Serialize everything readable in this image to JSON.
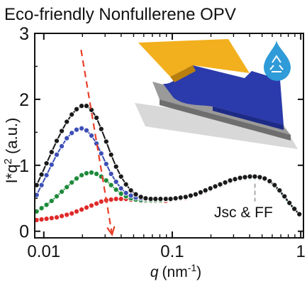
{
  "title": "Eco-friendly Nonfullerene OPV",
  "chart_data": {
    "type": "scatter",
    "title": "Eco-friendly Nonfullerene OPV",
    "xlabel_italic": "q",
    "xlabel_unit": "(nm",
    "xlabel_exp": "-1",
    "xlabel_close": ")",
    "ylabel_base": "I*q",
    "ylabel_exp": "2",
    "ylabel_unit": " (a.u.)",
    "xscale": "log",
    "xlim": [
      0.0085,
      1.05
    ],
    "ylim": [
      -0.1,
      3.0
    ],
    "xticks": [
      {
        "v": 0.01,
        "label": "0.01"
      },
      {
        "v": 0.1,
        "label": "0.1"
      },
      {
        "v": 1,
        "label": "1"
      }
    ],
    "yticks": [
      {
        "v": 0,
        "label": "0"
      },
      {
        "v": 1,
        "label": "1"
      },
      {
        "v": 2,
        "label": "2"
      },
      {
        "v": 3,
        "label": "3"
      }
    ],
    "annotation": "Jsc & FF",
    "colors": {
      "black": "#1a1a1a",
      "blue": "#3d4fb5",
      "green": "#1e8a3a",
      "red": "#e02a2a",
      "arrow": "#e8402a",
      "dashed_line": "#aaaaaa"
    },
    "series": [
      {
        "color": "black",
        "x": [
          0.0088,
          0.0096,
          0.0105,
          0.0115,
          0.0126,
          0.0138,
          0.0151,
          0.0165,
          0.018,
          0.0197,
          0.0215,
          0.0235,
          0.0257,
          0.028,
          0.0306,
          0.0334,
          0.0365,
          0.0399,
          0.0436,
          0.0476,
          0.052,
          0.057,
          0.062,
          0.068,
          0.074,
          0.081,
          0.089,
          0.097,
          0.106,
          0.116,
          0.127,
          0.139,
          0.152,
          0.166,
          0.181,
          0.198,
          0.216,
          0.236,
          0.258,
          0.282,
          0.308,
          0.337,
          0.368,
          0.402,
          0.439,
          0.48,
          0.524,
          0.573,
          0.626,
          0.684,
          0.747,
          0.816,
          0.892,
          0.975
        ],
        "y": [
          0.7,
          0.86,
          1.03,
          1.2,
          1.37,
          1.52,
          1.66,
          1.77,
          1.85,
          1.9,
          1.9,
          1.84,
          1.72,
          1.55,
          1.36,
          1.16,
          0.98,
          0.83,
          0.71,
          0.62,
          0.56,
          0.52,
          0.5,
          0.49,
          0.49,
          0.49,
          0.49,
          0.49,
          0.5,
          0.51,
          0.52,
          0.54,
          0.56,
          0.59,
          0.62,
          0.65,
          0.68,
          0.71,
          0.74,
          0.77,
          0.79,
          0.81,
          0.82,
          0.83,
          0.83,
          0.82,
          0.8,
          0.76,
          0.7,
          0.62,
          0.53,
          0.43,
          0.34,
          0.26
        ]
      },
      {
        "color": "blue",
        "x": [
          0.0088,
          0.0096,
          0.0105,
          0.0115,
          0.0126,
          0.0138,
          0.0151,
          0.0165,
          0.018,
          0.0197,
          0.0215,
          0.0235,
          0.0257,
          0.028,
          0.0306,
          0.0334,
          0.0365,
          0.0399,
          0.0436,
          0.0476,
          0.052,
          0.057,
          0.062,
          0.068,
          0.074,
          0.081,
          0.089,
          0.097,
          0.106,
          0.116,
          0.127,
          0.139,
          0.152,
          0.166,
          0.181,
          0.198,
          0.216,
          0.236,
          0.258,
          0.282,
          0.308,
          0.337,
          0.368,
          0.402,
          0.439,
          0.48,
          0.524,
          0.573,
          0.626,
          0.684,
          0.747,
          0.816,
          0.892,
          0.975
        ],
        "y": [
          0.55,
          0.7,
          0.85,
          1.01,
          1.16,
          1.29,
          1.41,
          1.49,
          1.54,
          1.56,
          1.53,
          1.45,
          1.33,
          1.18,
          1.02,
          0.87,
          0.75,
          0.65,
          0.58,
          0.54,
          0.51,
          0.5,
          0.49,
          0.49,
          0.49,
          0.49,
          0.49,
          0.49,
          0.5,
          0.51,
          0.52,
          0.54,
          0.56,
          0.59,
          0.62,
          0.65,
          0.68,
          0.71,
          0.74,
          0.77,
          0.79,
          0.8,
          0.81,
          0.82,
          0.82,
          0.81,
          0.79,
          0.75,
          0.69,
          0.61,
          0.52,
          0.43,
          0.34,
          0.26
        ]
      },
      {
        "color": "green",
        "x": [
          0.0088,
          0.0096,
          0.0105,
          0.0115,
          0.0126,
          0.0138,
          0.0151,
          0.0165,
          0.018,
          0.0197,
          0.0215,
          0.0235,
          0.0257,
          0.028,
          0.0306,
          0.0334,
          0.0365,
          0.0399,
          0.0436,
          0.0476,
          0.052,
          0.057,
          0.062,
          0.068,
          0.074,
          0.081,
          0.089,
          0.097,
          0.106,
          0.116,
          0.127,
          0.139,
          0.152,
          0.166,
          0.181,
          0.198,
          0.216,
          0.236,
          0.258,
          0.282,
          0.308,
          0.337,
          0.368,
          0.402,
          0.439,
          0.48,
          0.524,
          0.573,
          0.626,
          0.684,
          0.747,
          0.816,
          0.892,
          0.975
        ],
        "y": [
          0.3,
          0.35,
          0.4,
          0.46,
          0.53,
          0.6,
          0.67,
          0.74,
          0.8,
          0.85,
          0.88,
          0.89,
          0.87,
          0.83,
          0.77,
          0.7,
          0.63,
          0.57,
          0.53,
          0.5,
          0.48,
          0.47,
          0.47,
          0.47,
          0.47,
          0.47,
          0.48,
          0.48,
          0.49,
          0.5,
          0.51,
          0.53,
          0.55,
          0.58,
          0.61,
          0.64,
          0.67,
          0.7,
          0.73,
          0.76,
          0.78,
          0.79,
          0.8,
          0.81,
          0.81,
          0.8,
          0.78,
          0.74,
          0.68,
          0.6,
          0.51,
          0.42,
          0.33,
          0.25
        ]
      },
      {
        "color": "red",
        "x": [
          0.0088,
          0.0096,
          0.0105,
          0.0115,
          0.0126,
          0.0138,
          0.0151,
          0.0165,
          0.018,
          0.0197,
          0.0215,
          0.0235,
          0.0257,
          0.028,
          0.0306,
          0.0334,
          0.0365,
          0.0399,
          0.0436,
          0.0476,
          0.052,
          0.057,
          0.062,
          0.068,
          0.074,
          0.081,
          0.089,
          0.097,
          0.106,
          0.116,
          0.127,
          0.139,
          0.152,
          0.166,
          0.181,
          0.198,
          0.216,
          0.236,
          0.258,
          0.282,
          0.308,
          0.337,
          0.368,
          0.402,
          0.439,
          0.48,
          0.524,
          0.573,
          0.626,
          0.684,
          0.747,
          0.816,
          0.892,
          0.975
        ],
        "y": [
          0.17,
          0.18,
          0.19,
          0.2,
          0.21,
          0.23,
          0.25,
          0.27,
          0.3,
          0.33,
          0.36,
          0.39,
          0.42,
          0.45,
          0.47,
          0.48,
          0.49,
          0.49,
          0.49,
          0.48,
          0.47,
          0.46,
          0.46,
          0.46,
          0.46,
          0.46,
          0.46,
          0.47,
          0.48,
          0.49,
          0.5,
          0.52,
          0.54,
          0.57,
          0.6,
          0.63,
          0.66,
          0.69,
          0.72,
          0.75,
          0.77,
          0.79,
          0.8,
          0.81,
          0.81,
          0.8,
          0.78,
          0.74,
          0.68,
          0.6,
          0.51,
          0.42,
          0.33,
          0.25
        ]
      }
    ],
    "arrow": {
      "from": [
        0.0195,
        2.75
      ],
      "to": [
        0.034,
        -0.05
      ]
    },
    "vline": {
      "x": 0.44,
      "y_from": 0.83,
      "y_to": 0.45
    }
  }
}
